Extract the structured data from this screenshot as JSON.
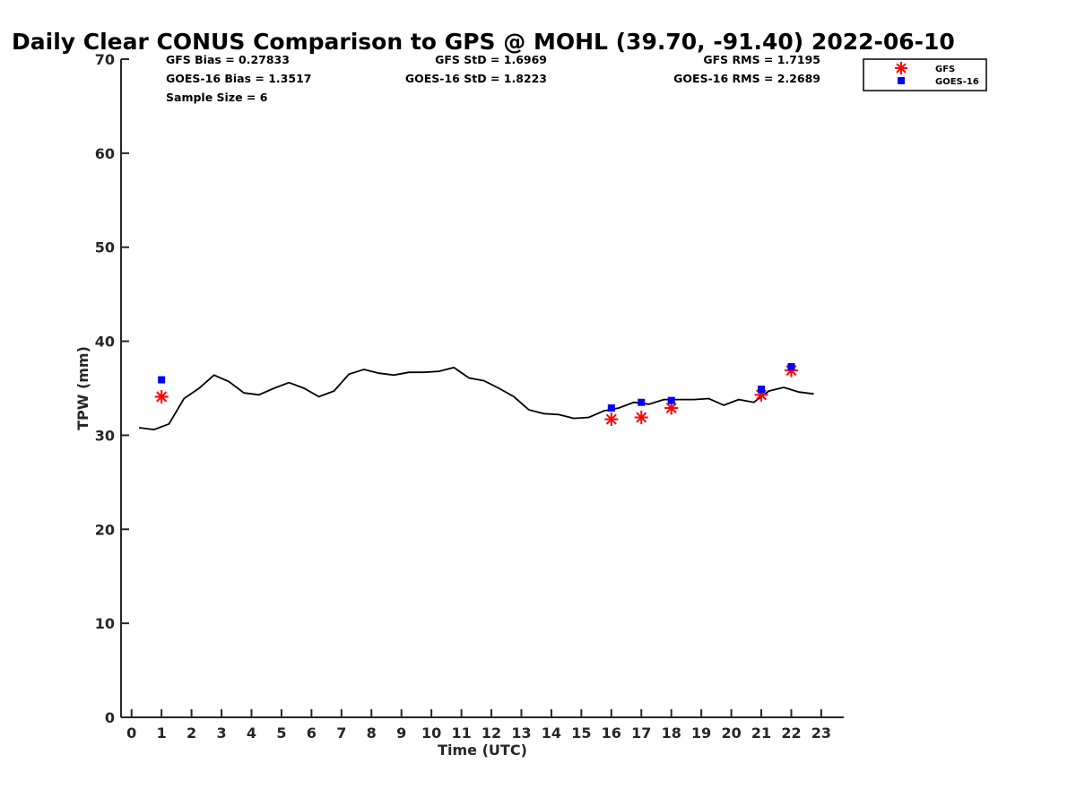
{
  "chart_data": {
    "type": "line",
    "title": "Daily Clear CONUS Comparison to GPS @ MOHL (39.70, -91.40) 2022-06-10",
    "xlabel": "Time (UTC)",
    "ylabel": "TPW (mm)",
    "xlim": [
      -0.35,
      23.75
    ],
    "ylim": [
      0,
      70
    ],
    "x_ticks": [
      "0",
      "1",
      "2",
      "3",
      "4",
      "5",
      "6",
      "7",
      "8",
      "9",
      "10",
      "11",
      "12",
      "13",
      "14",
      "15",
      "16",
      "17",
      "18",
      "19",
      "20",
      "21",
      "22",
      "23"
    ],
    "y_ticks": [
      "0",
      "10",
      "20",
      "30",
      "40",
      "50",
      "60",
      "70"
    ],
    "grid": false,
    "legend_position": "top-right",
    "stats": {
      "gfs_bias": "GFS Bias = 0.27833",
      "goes_bias": "GOES-16 Bias = 1.3517",
      "sample_size": "Sample Size = 6",
      "gfs_std": "GFS StD = 1.6969",
      "goes_std": "GOES-16 StD = 1.8223",
      "gfs_rms": "GFS RMS = 1.7195",
      "goes_rms": "GOES-16 RMS = 2.2689"
    },
    "series": [
      {
        "role": "gps",
        "type": "line",
        "color": "#000000",
        "x": [
          0.25,
          0.75,
          1.25,
          1.75,
          2.25,
          2.75,
          3.25,
          3.75,
          4.25,
          4.75,
          5.25,
          5.75,
          6.25,
          6.75,
          7.25,
          7.75,
          8.25,
          8.75,
          9.25,
          9.75,
          10.25,
          10.75,
          11.25,
          11.75,
          12.25,
          12.75,
          13.25,
          13.75,
          14.25,
          14.75,
          15.25,
          15.75,
          16.25,
          16.75,
          17.25,
          17.75,
          18.25,
          18.75,
          19.25,
          19.75,
          20.25,
          20.75,
          21.25,
          21.75,
          22.25,
          22.75
        ],
        "values": [
          30.8,
          30.6,
          31.2,
          33.9,
          35.0,
          36.4,
          35.7,
          34.5,
          34.3,
          35.0,
          35.6,
          35.0,
          34.1,
          34.7,
          36.5,
          37.0,
          36.6,
          36.4,
          36.7,
          36.7,
          36.8,
          37.2,
          36.1,
          35.8,
          35.0,
          34.1,
          32.7,
          32.3,
          32.2,
          31.8,
          31.9,
          32.6,
          32.9,
          33.5,
          33.3,
          33.8,
          33.8,
          33.8,
          33.9,
          33.2,
          33.8,
          33.5,
          34.7,
          35.1,
          34.6,
          34.4
        ]
      },
      {
        "name": "GFS",
        "type": "scatter",
        "marker": "asterisk",
        "color": "#ff0000",
        "x": [
          1,
          16,
          17,
          18,
          21,
          22
        ],
        "values": [
          34.1,
          31.7,
          31.9,
          32.9,
          34.3,
          36.9
        ]
      },
      {
        "name": "GOES-16",
        "type": "scatter",
        "marker": "square",
        "color": "#0000ff",
        "x": [
          1,
          16,
          17,
          18,
          21,
          22
        ],
        "values": [
          35.9,
          32.9,
          33.5,
          33.7,
          34.9,
          37.3
        ]
      }
    ]
  }
}
